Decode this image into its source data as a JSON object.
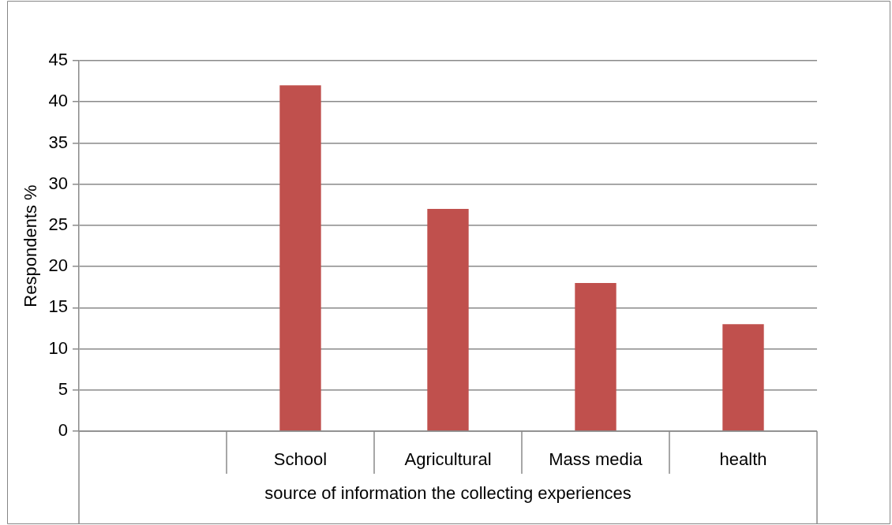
{
  "chart_data": {
    "type": "bar",
    "categories": [
      null,
      "School",
      "Agricultural",
      "Mass media",
      "health"
    ],
    "values": [
      null,
      42,
      27,
      18,
      13
    ],
    "color": "#c0504d",
    "xlabel": "source of information the collecting experiences",
    "ylabel": "Respondents %",
    "ylim": [
      0,
      45
    ],
    "yticks": [
      0,
      5,
      10,
      15,
      20,
      25,
      30,
      35,
      40,
      45
    ],
    "grid": "y"
  }
}
